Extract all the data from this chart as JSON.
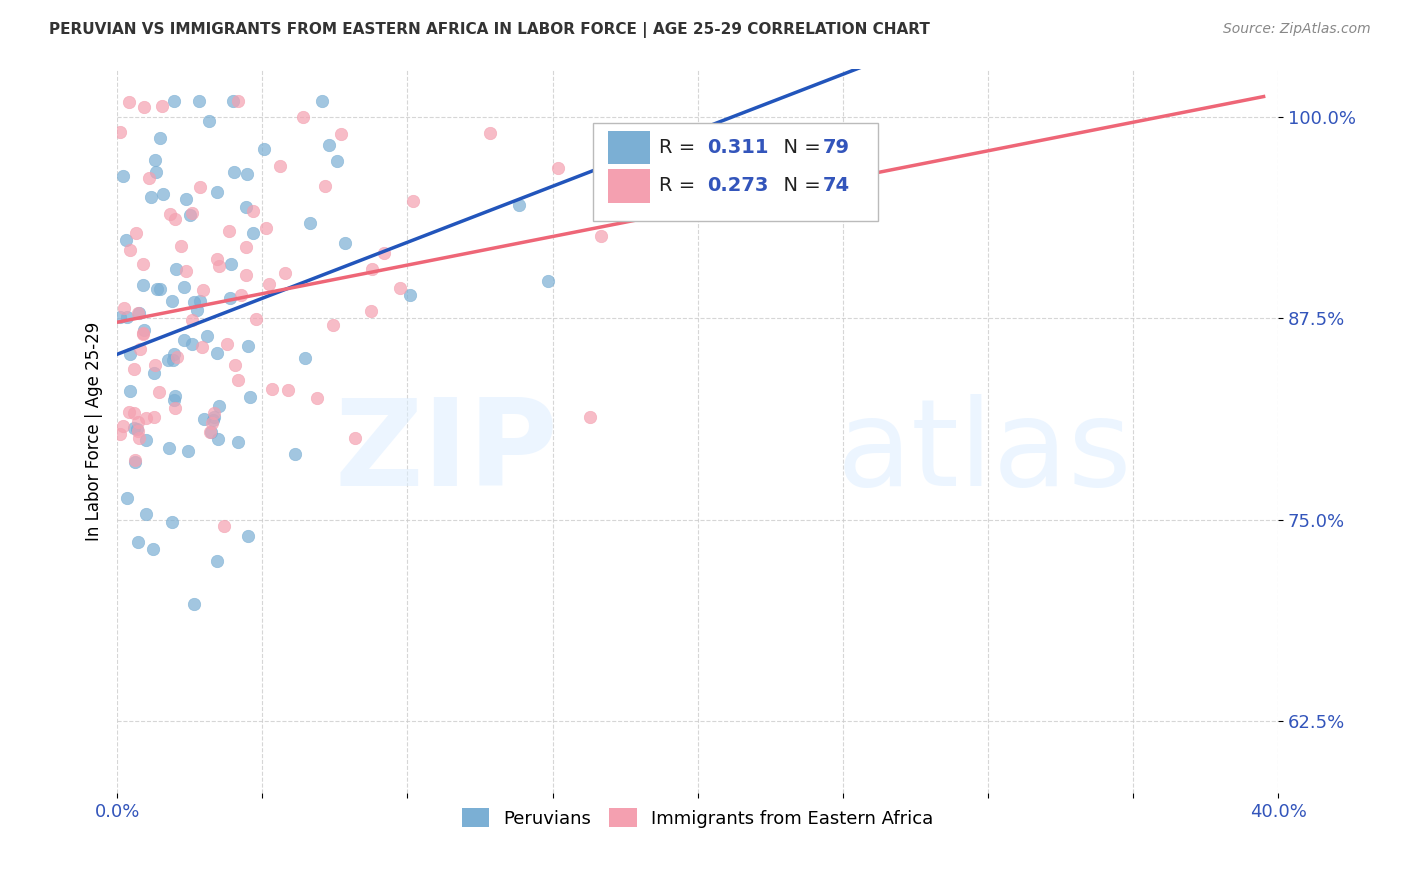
{
  "title": "PERUVIAN VS IMMIGRANTS FROM EASTERN AFRICA IN LABOR FORCE | AGE 25-29 CORRELATION CHART",
  "source": "Source: ZipAtlas.com",
  "ylabel": "In Labor Force | Age 25-29",
  "xlim": [
    0.0,
    0.4
  ],
  "ylim": [
    0.58,
    1.03
  ],
  "yticks": [
    0.625,
    0.75,
    0.875,
    1.0
  ],
  "ytick_labels": [
    "62.5%",
    "75.0%",
    "87.5%",
    "100.0%"
  ],
  "xticks": [
    0.0,
    0.05,
    0.1,
    0.15,
    0.2,
    0.25,
    0.3,
    0.35,
    0.4
  ],
  "xtick_labels": [
    "0.0%",
    "",
    "",
    "",
    "",
    "",
    "",
    "",
    "40.0%"
  ],
  "blue_R": 0.311,
  "blue_N": 79,
  "pink_R": 0.273,
  "pink_N": 74,
  "blue_color": "#7BAFD4",
  "pink_color": "#F4A0B0",
  "trendline_blue": "#2255BB",
  "trendline_pink": "#EE6677",
  "axis_color": "#3355BB",
  "legend_label_blue": "Peruvians",
  "legend_label_pink": "Immigrants from Eastern Africa"
}
